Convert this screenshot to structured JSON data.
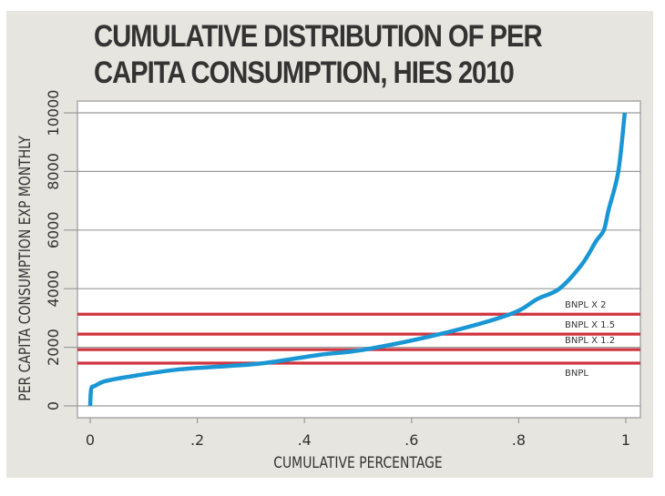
{
  "colors": {
    "panel_background": "#e6e5df",
    "plot_background": "#ffffff",
    "curve": "#1a96d4",
    "reference_lines": "#d0343f",
    "grid": "#9a9a9a",
    "text": "#333333"
  },
  "chart_data": {
    "type": "line",
    "title_lines": [
      "CUMULATIVE DISTRIBUTION OF PER",
      "CAPITA CONSUMPTION, HIES 2010"
    ],
    "xlabel": "CUMULATIVE PERCENTAGE",
    "ylabel": "PER CAPITA CONSUMPTION EXP MONTHLY",
    "xlim": [
      0,
      1
    ],
    "ylim": [
      0,
      10000
    ],
    "x_ticks": [
      {
        "value": 0,
        "label": "0"
      },
      {
        "value": 0.2,
        "label": ".2"
      },
      {
        "value": 0.4,
        "label": ".4"
      },
      {
        "value": 0.6,
        "label": ".6"
      },
      {
        "value": 0.8,
        "label": ".8"
      },
      {
        "value": 1,
        "label": "1"
      }
    ],
    "y_ticks": [
      {
        "value": 0,
        "label": "0"
      },
      {
        "value": 2000,
        "label": "2000"
      },
      {
        "value": 4000,
        "label": "4000"
      },
      {
        "value": 6000,
        "label": "6000"
      },
      {
        "value": 8000,
        "label": "8000"
      },
      {
        "value": 10000,
        "label": "10000"
      }
    ],
    "grid": "horizontal",
    "series": [
      {
        "name": "Per capita consumption",
        "x": [
          0.0,
          0.002,
          0.0085,
          0.027,
          0.07,
          0.163,
          0.257,
          0.325,
          0.427,
          0.512,
          0.653,
          0.784,
          0.835,
          0.876,
          0.918,
          0.944,
          0.959,
          0.968,
          0.986,
          0.998
        ],
        "y": [
          0,
          590,
          680,
          840,
          990,
          1240,
          1360,
          1460,
          1740,
          1920,
          2450,
          3130,
          3650,
          4000,
          4830,
          5610,
          6000,
          6700,
          8000,
          10000
        ]
      }
    ],
    "reference_lines": [
      {
        "label": "BNPL X 2",
        "value": 3130
      },
      {
        "label": "BNPL X 1.5",
        "value": 2450
      },
      {
        "label": "BNPL X 1.2",
        "value": 1920
      },
      {
        "label": "BNPL",
        "value": 1460
      }
    ]
  }
}
